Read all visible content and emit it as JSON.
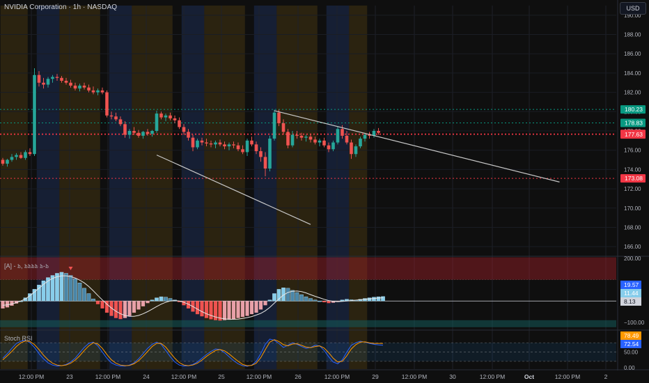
{
  "header": {
    "title": "NVIDIA Corporation · 1h · NASDAQ"
  },
  "currency_button": {
    "label": "USD"
  },
  "indicator_panel": {
    "label": "[A] - ಶಿ, ಶಿಶಿಶಿಶಿ ಶಿ-ಶಿ"
  },
  "rsi_panel": {
    "label": "Stoch RSI"
  },
  "colors": {
    "up": "#26a69a",
    "down": "#ef5350",
    "trend": "#c8c8c8",
    "resist": "#089981",
    "support": "#f23645",
    "hist_light": "#87cdeb",
    "hist_pink": "#e8a0a8"
  },
  "chart_data": [
    {
      "type": "candlestick",
      "title": "NVIDIA Corporation · 1h · NASDAQ",
      "y_ticks": [
        "166.00",
        "168.00",
        "170.00",
        "172.00",
        "174.00",
        "176.00",
        "178.00",
        "180.00",
        "182.00",
        "184.00",
        "186.00",
        "188.00",
        "190.00"
      ],
      "ylim": [
        165,
        191
      ],
      "x_ticks": [
        "12:00 PM",
        "23",
        "12:00 PM",
        "24",
        "12:00 PM",
        "25",
        "12:00 PM",
        "26",
        "12:00 PM",
        "29",
        "12:00 PM",
        "30",
        "12:00 PM",
        "Oct",
        "12:00 PM",
        "2"
      ],
      "price_labels": [
        {
          "value": "180.23",
          "kind": "resistance"
        },
        {
          "value": "178.83",
          "kind": "resistance"
        },
        {
          "value": "177.69",
          "kind": "support"
        },
        {
          "value": "177.63",
          "kind": "support"
        },
        {
          "value": "173.08",
          "kind": "support"
        }
      ],
      "candles": [
        [
          175.0,
          175.2,
          174.4,
          174.6
        ],
        [
          174.6,
          175.1,
          174.3,
          175.0
        ],
        [
          175.0,
          175.6,
          174.8,
          175.3
        ],
        [
          175.3,
          175.7,
          175.0,
          175.5
        ],
        [
          175.5,
          175.8,
          175.1,
          175.2
        ],
        [
          175.2,
          176.0,
          175.0,
          175.8
        ],
        [
          175.8,
          176.2,
          175.4,
          175.6
        ],
        [
          175.6,
          184.5,
          175.4,
          183.8
        ],
        [
          183.8,
          184.2,
          182.6,
          183.0
        ],
        [
          183.0,
          183.5,
          182.4,
          182.8
        ],
        [
          182.8,
          183.6,
          182.5,
          183.4
        ],
        [
          183.4,
          183.8,
          183.0,
          183.6
        ],
        [
          183.6,
          183.9,
          183.2,
          183.5
        ],
        [
          183.5,
          183.7,
          183.0,
          183.2
        ],
        [
          183.2,
          183.5,
          182.8,
          183.0
        ],
        [
          183.0,
          183.3,
          182.5,
          182.7
        ],
        [
          182.7,
          183.0,
          182.2,
          182.4
        ],
        [
          182.4,
          182.9,
          182.1,
          182.7
        ],
        [
          182.7,
          183.0,
          182.3,
          182.5
        ],
        [
          182.5,
          182.8,
          182.0,
          182.2
        ],
        [
          182.2,
          182.6,
          181.8,
          182.0
        ],
        [
          182.0,
          182.4,
          181.7,
          182.2
        ],
        [
          182.2,
          182.5,
          181.8,
          182.0
        ],
        [
          182.0,
          182.2,
          179.4,
          179.6
        ],
        [
          179.6,
          180.0,
          179.2,
          179.5
        ],
        [
          179.5,
          179.9,
          179.0,
          179.2
        ],
        [
          179.2,
          179.5,
          178.5,
          178.7
        ],
        [
          178.7,
          179.0,
          177.3,
          177.6
        ],
        [
          177.6,
          178.2,
          177.2,
          178.0
        ],
        [
          178.0,
          178.4,
          177.6,
          177.8
        ],
        [
          177.8,
          178.1,
          177.3,
          177.5
        ],
        [
          177.5,
          178.0,
          177.2,
          177.9
        ],
        [
          177.9,
          178.2,
          177.5,
          177.7
        ],
        [
          177.7,
          178.1,
          177.4,
          178.0
        ],
        [
          178.0,
          180.1,
          177.8,
          179.8
        ],
        [
          179.8,
          180.0,
          179.2,
          179.4
        ],
        [
          179.4,
          179.8,
          179.0,
          179.6
        ],
        [
          179.6,
          179.9,
          179.1,
          179.3
        ],
        [
          179.3,
          179.6,
          178.8,
          179.1
        ],
        [
          179.1,
          179.4,
          178.2,
          178.4
        ],
        [
          178.4,
          178.7,
          177.6,
          177.9
        ],
        [
          177.9,
          178.2,
          177.0,
          177.3
        ],
        [
          177.3,
          177.6,
          175.9,
          176.3
        ],
        [
          176.3,
          177.2,
          176.1,
          177.0
        ],
        [
          177.0,
          177.3,
          176.5,
          176.8
        ],
        [
          176.8,
          177.2,
          176.4,
          176.7
        ],
        [
          176.7,
          177.0,
          176.3,
          176.6
        ],
        [
          176.6,
          177.0,
          176.2,
          176.8
        ],
        [
          176.8,
          177.1,
          176.4,
          176.6
        ],
        [
          176.6,
          176.9,
          176.1,
          176.4
        ],
        [
          176.4,
          176.8,
          176.0,
          176.6
        ],
        [
          176.6,
          176.9,
          176.2,
          176.5
        ],
        [
          176.5,
          176.8,
          175.9,
          176.1
        ],
        [
          176.1,
          176.5,
          175.6,
          175.8
        ],
        [
          175.8,
          177.2,
          175.4,
          177.0
        ],
        [
          177.0,
          177.4,
          176.4,
          176.6
        ],
        [
          176.6,
          176.9,
          175.6,
          175.9
        ],
        [
          175.9,
          176.3,
          174.8,
          175.3
        ],
        [
          175.3,
          175.8,
          173.3,
          174.1
        ],
        [
          174.1,
          177.5,
          173.8,
          177.2
        ],
        [
          177.2,
          180.2,
          177.0,
          179.9
        ],
        [
          179.9,
          180.2,
          178.5,
          178.8
        ],
        [
          178.8,
          179.2,
          177.6,
          177.9
        ],
        [
          177.9,
          178.2,
          176.2,
          176.5
        ],
        [
          176.5,
          178.0,
          176.3,
          177.6
        ],
        [
          177.6,
          178.0,
          177.2,
          177.5
        ],
        [
          177.5,
          177.8,
          177.0,
          177.3
        ],
        [
          177.3,
          177.6,
          176.9,
          177.4
        ],
        [
          177.4,
          177.7,
          176.8,
          177.1
        ],
        [
          177.1,
          177.4,
          176.6,
          176.8
        ],
        [
          176.8,
          177.2,
          176.4,
          177.0
        ],
        [
          177.0,
          177.3,
          176.3,
          176.5
        ],
        [
          176.5,
          176.8,
          175.8,
          176.1
        ],
        [
          176.1,
          177.0,
          175.9,
          176.8
        ],
        [
          176.8,
          178.5,
          176.6,
          178.2
        ],
        [
          178.2,
          178.6,
          177.2,
          177.5
        ],
        [
          177.5,
          178.0,
          176.6,
          176.8
        ],
        [
          176.8,
          177.1,
          175.1,
          175.6
        ],
        [
          175.6,
          176.6,
          175.3,
          176.4
        ],
        [
          176.4,
          177.4,
          176.2,
          177.2
        ],
        [
          177.2,
          177.8,
          176.9,
          177.6
        ],
        [
          177.6,
          177.9,
          177.2,
          177.5
        ],
        [
          177.5,
          178.2,
          177.3,
          178.0
        ],
        [
          178.0,
          178.3,
          177.6,
          177.8
        ]
      ],
      "trendlines": [
        {
          "points": [
            [
              60,
              180.1
            ],
            [
              123,
              172.7
            ]
          ],
          "label": ""
        },
        {
          "points": [
            [
              34,
              175.5
            ],
            [
              68,
              168.3
            ]
          ],
          "label": ""
        }
      ],
      "hlines": [
        {
          "value": 180.23,
          "color": "#089981"
        },
        {
          "value": 178.83,
          "color": "#089981"
        },
        {
          "value": 177.69,
          "color": "#f23645"
        },
        {
          "value": 177.63,
          "color": "#f23645"
        },
        {
          "value": 173.08,
          "color": "#f23645"
        }
      ],
      "session_bands": [
        {
          "from": 0,
          "to": 5,
          "kind": "orange"
        },
        {
          "from": 8,
          "to": 12,
          "kind": "blue"
        },
        {
          "from": 13,
          "to": 21,
          "kind": "orange"
        },
        {
          "from": 24,
          "to": 28,
          "kind": "blue"
        },
        {
          "from": 29,
          "to": 37,
          "kind": "orange"
        },
        {
          "from": 40,
          "to": 44,
          "kind": "blue"
        },
        {
          "from": 45,
          "to": 53,
          "kind": "orange"
        },
        {
          "from": 56,
          "to": 60,
          "kind": "blue"
        },
        {
          "from": 61,
          "to": 69,
          "kind": "orange"
        },
        {
          "from": 72,
          "to": 76,
          "kind": "blue"
        },
        {
          "from": 77,
          "to": 80,
          "kind": "orange"
        }
      ]
    },
    {
      "type": "histogram",
      "title": "[A] - ಶಿ, ಶಿಶಿಶಿಶಿ ಶಿ-ಶಿ",
      "y_ticks": [
        "200.00",
        "0",
        "−100.00"
      ],
      "ylim": [
        -130,
        210
      ],
      "value_labels": [
        {
          "value": "19.57",
          "color": "#2962ff"
        },
        {
          "value": "11.44",
          "color": "#87cdeb"
        },
        {
          "value": "8.13",
          "color": "#d1d4dc"
        }
      ],
      "bars": [
        -35,
        -30,
        -22,
        -12,
        0,
        15,
        35,
        55,
        75,
        95,
        110,
        120,
        130,
        135,
        130,
        120,
        105,
        85,
        60,
        35,
        10,
        -15,
        -35,
        -55,
        -70,
        -80,
        -85,
        -80,
        -70,
        -55,
        -40,
        -25,
        -10,
        5,
        15,
        20,
        18,
        12,
        5,
        -5,
        -20,
        -35,
        -50,
        -62,
        -72,
        -80,
        -86,
        -90,
        -92,
        -90,
        -88,
        -85,
        -80,
        -75,
        -70,
        -62,
        -55,
        -40,
        -20,
        5,
        35,
        55,
        62,
        60,
        50,
        40,
        30,
        20,
        12,
        5,
        0,
        -6,
        -10,
        -8,
        -2,
        5,
        8,
        6,
        4,
        8,
        12,
        15,
        18,
        20,
        21
      ],
      "signal": [
        -20,
        -18,
        -14,
        -8,
        0,
        10,
        25,
        42,
        60,
        78,
        94,
        106,
        114,
        118,
        118,
        115,
        108,
        98,
        85,
        68,
        48,
        26,
        5,
        -15,
        -33,
        -48,
        -60,
        -68,
        -72,
        -72,
        -68,
        -60,
        -50,
        -38,
        -26,
        -15,
        -6,
        0,
        2,
        0,
        -6,
        -15,
        -26,
        -38,
        -50,
        -60,
        -68,
        -75,
        -80,
        -84,
        -86,
        -86,
        -85,
        -82,
        -78,
        -73,
        -66,
        -58,
        -46,
        -30,
        -10,
        10,
        28,
        40,
        46,
        47,
        44,
        38,
        30,
        22,
        15,
        8,
        2,
        -2,
        -3,
        -2,
        0,
        2,
        4,
        6,
        8,
        10,
        12,
        14,
        15
      ],
      "signal_marker_index": 15,
      "bands": [
        {
          "from": 100,
          "to": 205,
          "color": "red"
        }
      ]
    },
    {
      "type": "line",
      "title": "Stoch RSI",
      "y_ticks": [
        "100.00",
        "50.00",
        "0.00"
      ],
      "ylim": [
        -5,
        112
      ],
      "value_labels": [
        {
          "value": "78.49",
          "color": "#ff9800"
        },
        {
          "value": "72.54",
          "color": "#2962ff"
        }
      ],
      "levels": [
        80,
        50,
        20
      ],
      "series": [
        {
          "name": "",
          "color": "#2962ff",
          "values": [
            30,
            45,
            62,
            78,
            85,
            88,
            80,
            65,
            45,
            28,
            15,
            8,
            5,
            6,
            10,
            18,
            30,
            48,
            65,
            78,
            82,
            70,
            50,
            30,
            15,
            8,
            5,
            5,
            8,
            15,
            28,
            45,
            62,
            75,
            82,
            75,
            55,
            35,
            18,
            8,
            5,
            6,
            10,
            18,
            30,
            42,
            52,
            60,
            58,
            48,
            35,
            22,
            12,
            6,
            4,
            8,
            20,
            45,
            75,
            92,
            88,
            78,
            65,
            72,
            80,
            75,
            68,
            62,
            65,
            72,
            70,
            55,
            35,
            18,
            12,
            25,
            50,
            72,
            80,
            85,
            82,
            78,
            75,
            73,
            72
          ]
        },
        {
          "name": "",
          "color": "#ff9800",
          "values": [
            25,
            38,
            52,
            68,
            80,
            86,
            84,
            74,
            58,
            40,
            25,
            14,
            8,
            6,
            8,
            14,
            24,
            38,
            55,
            70,
            80,
            76,
            62,
            42,
            25,
            14,
            8,
            6,
            7,
            12,
            22,
            36,
            52,
            68,
            78,
            78,
            66,
            48,
            30,
            16,
            8,
            6,
            8,
            14,
            24,
            36,
            46,
            55,
            58,
            54,
            44,
            32,
            20,
            10,
            6,
            7,
            14,
            32,
            58,
            82,
            90,
            84,
            74,
            70,
            76,
            77,
            72,
            66,
            64,
            68,
            70,
            63,
            48,
            30,
            18,
            20,
            38,
            60,
            74,
            82,
            83,
            80,
            78,
            78,
            78
          ]
        }
      ]
    }
  ]
}
